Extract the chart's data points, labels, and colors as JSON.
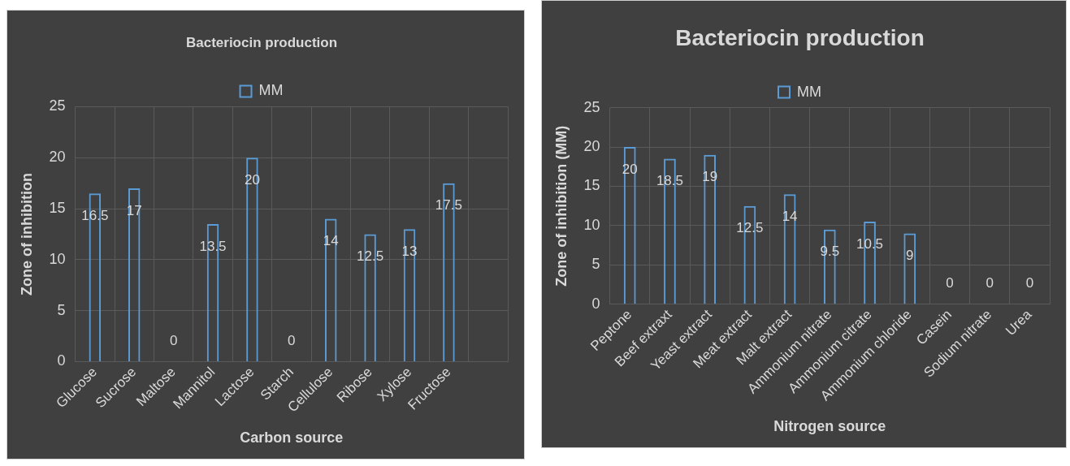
{
  "chart_data": [
    {
      "type": "bar",
      "title": "Bacteriocin production",
      "xlabel": "Carbon source",
      "ylabel": "Zone of inhibition",
      "categories": [
        "Glucose",
        "Sucrose",
        "Maltose",
        "Mannitol",
        "Lactose",
        "Starch",
        "Cellulose",
        "Ribose",
        "Xylose",
        "Fructose",
        null
      ],
      "series": [
        {
          "name": "MM",
          "color": "#5b9bd5",
          "values": [
            16.5,
            17,
            0,
            13.5,
            20,
            0,
            14,
            12.5,
            13,
            17.5,
            null
          ]
        }
      ],
      "ylim": [
        0,
        25
      ],
      "yticks": [
        0,
        5,
        10,
        15,
        20,
        25
      ],
      "grid": true,
      "legend": "top",
      "data_labels": true
    },
    {
      "type": "bar",
      "title": "Bacteriocin production",
      "xlabel": "Nitrogen source",
      "ylabel": "Zone of inhibition (MM)",
      "categories": [
        "Peptone",
        "Beef extraxt",
        "Yeast extract",
        "Meat extract",
        "Malt extract",
        "Ammonium nitrate",
        "Ammonium citrate",
        "Ammonium chloride",
        "Casein",
        "Sodium nitrate",
        "Urea"
      ],
      "series": [
        {
          "name": "MM",
          "color": "#5b9bd5",
          "values": [
            20,
            18.5,
            19,
            12.5,
            14,
            9.5,
            10.5,
            9,
            0,
            0,
            0
          ]
        }
      ],
      "ylim": [
        0,
        25
      ],
      "yticks": [
        0,
        5,
        10,
        15,
        20,
        25
      ],
      "grid": true,
      "legend": "top",
      "data_labels": true
    }
  ]
}
